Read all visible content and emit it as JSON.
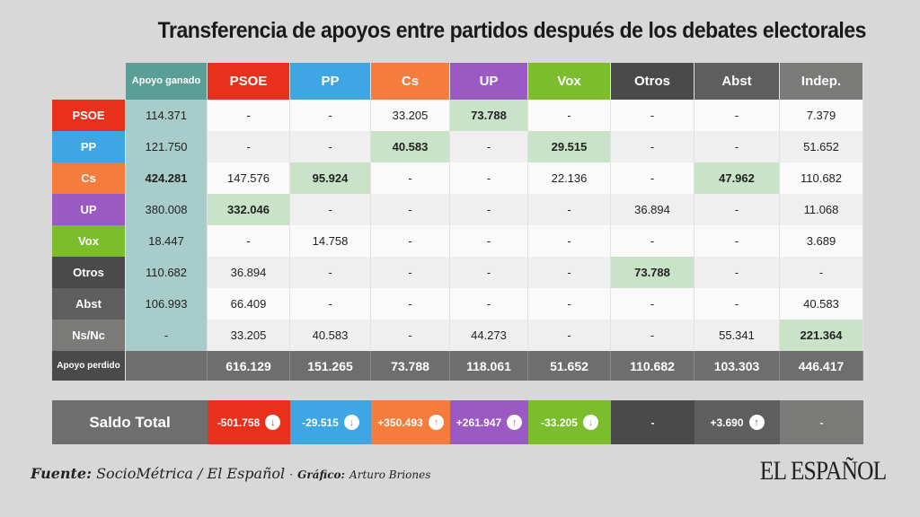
{
  "title": "Transferencia de apoyos entre partidos después de los debates electorales",
  "chart_data": {
    "type": "table",
    "title": "Transferencia de apoyos entre partidos después de los debates electorales",
    "corner": "",
    "gained_header": "Apoyo ganado",
    "columns": [
      {
        "label": "PSOE",
        "color": "#e8301c"
      },
      {
        "label": "PP",
        "color": "#3ea6e2"
      },
      {
        "label": "Cs",
        "color": "#f47c3c"
      },
      {
        "label": "UP",
        "color": "#9b59c3"
      },
      {
        "label": "Vox",
        "color": "#7bbd2c"
      },
      {
        "label": "Otros",
        "color": "#4a4a4a"
      },
      {
        "label": "Abst",
        "color": "#5e5e5e"
      },
      {
        "label": "Indep.",
        "color": "#7a7a79"
      }
    ],
    "rows": [
      {
        "label": "PSOE",
        "color": "#e8301c",
        "gained": "114.371",
        "gained_bold": false,
        "values": [
          "-",
          "-",
          "33.205",
          "73.788",
          "-",
          "-",
          "-",
          "7.379"
        ],
        "highlight": [
          3
        ]
      },
      {
        "label": "PP",
        "color": "#3ea6e2",
        "gained": "121.750",
        "gained_bold": false,
        "values": [
          "-",
          "-",
          "40.583",
          "-",
          "29.515",
          "-",
          "-",
          "51.652"
        ],
        "highlight": [
          2,
          4
        ]
      },
      {
        "label": "Cs",
        "color": "#f47c3c",
        "gained": "424.281",
        "gained_bold": true,
        "values": [
          "147.576",
          "95.924",
          "-",
          "-",
          "22.136",
          "-",
          "47.962",
          "110.682"
        ],
        "highlight": [
          1,
          6
        ]
      },
      {
        "label": "UP",
        "color": "#9b59c3",
        "gained": "380.008",
        "gained_bold": false,
        "values": [
          "332.046",
          "-",
          "-",
          "-",
          "-",
          "36.894",
          "-",
          "11.068"
        ],
        "highlight": [
          0
        ]
      },
      {
        "label": "Vox",
        "color": "#7bbd2c",
        "gained": "18.447",
        "gained_bold": false,
        "values": [
          "-",
          "14.758",
          "-",
          "-",
          "-",
          "-",
          "-",
          "3.689"
        ],
        "highlight": []
      },
      {
        "label": "Otros",
        "color": "#4a4a4a",
        "gained": "110.682",
        "gained_bold": false,
        "values": [
          "36.894",
          "-",
          "-",
          "-",
          "-",
          "73.788",
          "-",
          "-"
        ],
        "highlight": [
          5
        ]
      },
      {
        "label": "Abst",
        "color": "#5e5e5e",
        "gained": "106.993",
        "gained_bold": false,
        "values": [
          "66.409",
          "-",
          "-",
          "-",
          "-",
          "-",
          "-",
          "40.583"
        ],
        "highlight": []
      },
      {
        "label": "Ns/Nc",
        "color": "#7a7a79",
        "gained": "-",
        "gained_bold": false,
        "values": [
          "33.205",
          "40.583",
          "-",
          "44.273",
          "-",
          "-",
          "55.341",
          "221.364"
        ],
        "highlight": [
          7
        ]
      }
    ],
    "lost_label": "Apoyo perdido",
    "lost": [
      "616.129",
      "151.265",
      "73.788",
      "118.061",
      "51.652",
      "110.682",
      "103.303",
      "446.417"
    ],
    "saldo_label": "Saldo Total",
    "saldo": [
      {
        "value": "-501.758",
        "direction": "down"
      },
      {
        "value": "-29.515",
        "direction": "down"
      },
      {
        "value": "+350.493",
        "direction": "up"
      },
      {
        "value": "+261.947",
        "direction": "up"
      },
      {
        "value": "-33.205",
        "direction": "down"
      },
      {
        "value": "-",
        "direction": "none"
      },
      {
        "value": "+3.690",
        "direction": "up"
      },
      {
        "value": "-",
        "direction": "none"
      }
    ]
  },
  "footer": {
    "source_label": "Fuente:",
    "source": "SocioMétrica / El Español",
    "sep": "·",
    "graphic_label": "Gráfico:",
    "graphic": "Arturo Briones"
  },
  "logo": "EL ESPAÑOL",
  "colors": {
    "gained_header": "#5a9e95",
    "gained_cell": "#a7ccc9",
    "highlight": "#c9e3c9"
  }
}
